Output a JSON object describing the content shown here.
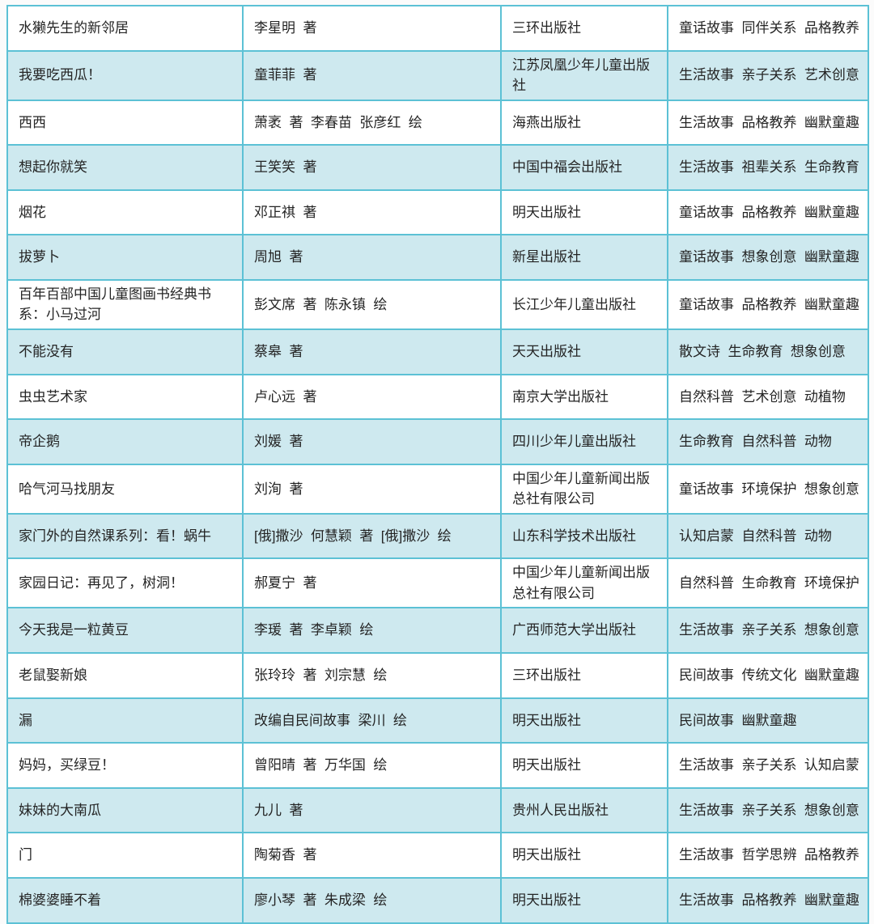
{
  "colors": {
    "border": "#5cc1d5",
    "row_even_bg": "#cee9ef",
    "row_odd_bg": "#ffffff",
    "text": "#242424"
  },
  "table": {
    "rows": [
      {
        "title": "水獭先生的新邻居",
        "author": "李星明  著",
        "publisher": "三环出版社",
        "tags": "童话故事  同伴关系  品格教养"
      },
      {
        "title": "我要吃西瓜！",
        "author": "童菲菲  著",
        "publisher": "江苏凤凰少年儿童出版社",
        "tags": "生活故事  亲子关系  艺术创意"
      },
      {
        "title": "西西",
        "author": "萧袤  著  李春苗  张彦红  绘",
        "publisher": "海燕出版社",
        "tags": "生活故事  品格教养  幽默童趣"
      },
      {
        "title": "想起你就笑",
        "author": "王笑笑  著",
        "publisher": "中国中福会出版社",
        "tags": "生活故事  祖辈关系  生命教育"
      },
      {
        "title": "烟花",
        "author": "邓正祺  著",
        "publisher": "明天出版社",
        "tags": "童话故事  品格教养  幽默童趣"
      },
      {
        "title": "拔萝卜",
        "author": "周旭  著",
        "publisher": "新星出版社",
        "tags": "童话故事  想象创意  幽默童趣"
      },
      {
        "title": "百年百部中国儿童图画书经典书系：小马过河",
        "author": "彭文席  著  陈永镇  绘",
        "publisher": "长江少年儿童出版社",
        "tags": "童话故事  品格教养  幽默童趣"
      },
      {
        "title": "不能没有",
        "author": "蔡皋  著",
        "publisher": "天天出版社",
        "tags": "散文诗  生命教育  想象创意"
      },
      {
        "title": "虫虫艺术家",
        "author": "卢心远  著",
        "publisher": "南京大学出版社",
        "tags": "自然科普  艺术创意  动植物"
      },
      {
        "title": "帝企鹅",
        "author": "刘媛  著",
        "publisher": "四川少年儿童出版社",
        "tags": "生命教育  自然科普  动物"
      },
      {
        "title": "哈气河马找朋友",
        "author": "刘洵  著",
        "publisher": "中国少年儿童新闻出版总社有限公司",
        "tags": "童话故事  环境保护  想象创意"
      },
      {
        "title": "家门外的自然课系列：看！蜗牛",
        "author": "[俄]撒沙  何慧颖  著  [俄]撒沙  绘",
        "publisher": "山东科学技术出版社",
        "tags": "认知启蒙  自然科普  动物"
      },
      {
        "title": "家园日记：再见了，树洞！",
        "author": "郝夏宁  著",
        "publisher": "中国少年儿童新闻出版总社有限公司",
        "tags": "自然科普  生命教育  环境保护"
      },
      {
        "title": "今天我是一粒黄豆",
        "author": "李瑗  著  李卓颖  绘",
        "publisher": "广西师范大学出版社",
        "tags": "生活故事  亲子关系  想象创意"
      },
      {
        "title": "老鼠娶新娘",
        "author": "张玲玲  著  刘宗慧  绘",
        "publisher": "三环出版社",
        "tags": "民间故事  传统文化  幽默童趣"
      },
      {
        "title": "漏",
        "author": "改编自民间故事  梁川  绘",
        "publisher": "明天出版社",
        "tags": "民间故事  幽默童趣"
      },
      {
        "title": "妈妈，买绿豆！",
        "author": "曾阳晴  著  万华国  绘",
        "publisher": "明天出版社",
        "tags": "生活故事  亲子关系  认知启蒙"
      },
      {
        "title": "妹妹的大南瓜",
        "author": "九儿  著",
        "publisher": "贵州人民出版社",
        "tags": "生活故事  亲子关系  想象创意"
      },
      {
        "title": "门",
        "author": "陶菊香  著",
        "publisher": "明天出版社",
        "tags": "生活故事  哲学思辨  品格教养"
      },
      {
        "title": "棉婆婆睡不着",
        "author": "廖小琴  著  朱成梁  绘",
        "publisher": "明天出版社",
        "tags": "生活故事  品格教养  幽默童趣"
      }
    ]
  }
}
